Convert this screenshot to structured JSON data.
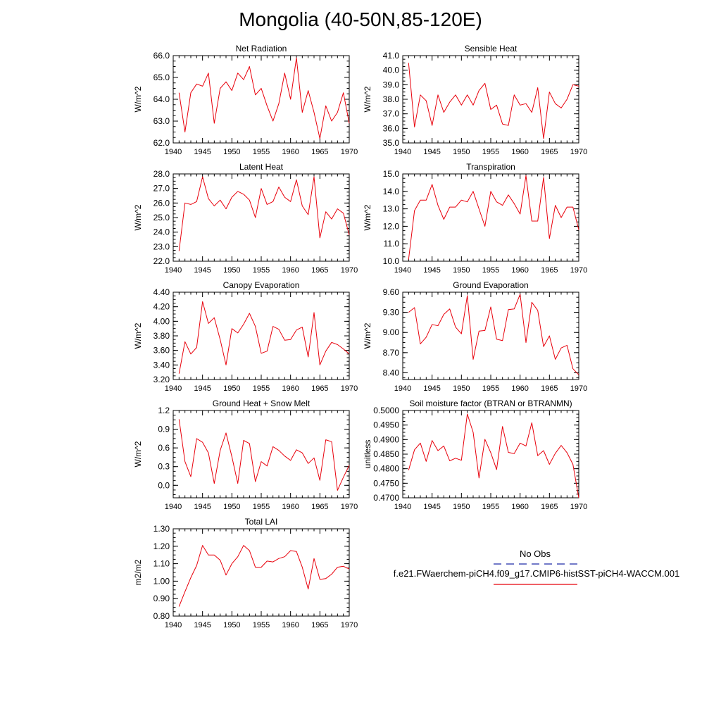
{
  "page_title": "Mongolia (40-50N,85-120E)",
  "colors": {
    "model_line": "#e8000b",
    "obs_line": "#1f2aa6",
    "axis": "#000000"
  },
  "legend": {
    "obs_label": "No Obs",
    "model_label": "f.e21.FWaerchem-piCH4.f09_g17.CMIP6-histSST-piCH4-WACCM.001"
  },
  "chart_data": [
    {
      "type": "line",
      "title": "Net Radiation",
      "ylabel": "W/m^2",
      "xlim": [
        1940,
        1970
      ],
      "ylim": [
        62.0,
        66.0
      ],
      "xticks": [
        "1940",
        "1945",
        "1950",
        "1955",
        "1960",
        "1965",
        "1970"
      ],
      "yticks": [
        "62.0",
        "63.0",
        "64.0",
        "65.0",
        "66.0"
      ],
      "x": [
        1941,
        1942,
        1943,
        1944,
        1945,
        1946,
        1947,
        1948,
        1949,
        1950,
        1951,
        1952,
        1953,
        1954,
        1955,
        1956,
        1957,
        1958,
        1959,
        1960,
        1961,
        1962,
        1963,
        1964,
        1965,
        1966,
        1967,
        1968,
        1969,
        1970
      ],
      "series": [
        {
          "values": [
            64.3,
            62.5,
            64.3,
            64.7,
            64.6,
            65.2,
            62.9,
            64.5,
            64.8,
            64.4,
            65.2,
            64.9,
            65.5,
            64.2,
            64.5,
            63.7,
            63.0,
            63.8,
            65.2,
            64.0,
            65.9,
            63.4,
            64.4,
            63.4,
            62.2,
            63.7,
            63.0,
            63.4,
            64.3,
            62.9
          ]
        }
      ]
    },
    {
      "type": "line",
      "title": "Sensible Heat",
      "ylabel": "W/m^2",
      "xlim": [
        1940,
        1970
      ],
      "ylim": [
        35.0,
        41.0
      ],
      "xticks": [
        "1940",
        "1945",
        "1950",
        "1955",
        "1960",
        "1965",
        "1970"
      ],
      "yticks": [
        "35.0",
        "36.0",
        "37.0",
        "38.0",
        "39.0",
        "40.0",
        "41.0"
      ],
      "x": [
        1941,
        1942,
        1943,
        1944,
        1945,
        1946,
        1947,
        1948,
        1949,
        1950,
        1951,
        1952,
        1953,
        1954,
        1955,
        1956,
        1957,
        1958,
        1959,
        1960,
        1961,
        1962,
        1963,
        1964,
        1965,
        1966,
        1967,
        1968,
        1969,
        1970
      ],
      "series": [
        {
          "values": [
            40.5,
            36.1,
            38.3,
            37.9,
            36.2,
            38.3,
            37.1,
            37.8,
            38.3,
            37.6,
            38.3,
            37.6,
            38.6,
            39.1,
            37.3,
            37.6,
            36.3,
            36.2,
            38.3,
            37.6,
            37.7,
            37.1,
            38.8,
            35.3,
            38.5,
            37.7,
            37.4,
            38.0,
            39.0,
            38.9
          ]
        }
      ]
    },
    {
      "type": "line",
      "title": "Latent Heat",
      "ylabel": "W/m^2",
      "xlim": [
        1940,
        1970
      ],
      "ylim": [
        22.0,
        28.0
      ],
      "xticks": [
        "1940",
        "1945",
        "1950",
        "1955",
        "1960",
        "1965",
        "1970"
      ],
      "yticks": [
        "22.0",
        "23.0",
        "24.0",
        "25.0",
        "26.0",
        "27.0",
        "28.0"
      ],
      "x": [
        1941,
        1942,
        1943,
        1944,
        1945,
        1946,
        1947,
        1948,
        1949,
        1950,
        1951,
        1952,
        1953,
        1954,
        1955,
        1956,
        1957,
        1958,
        1959,
        1960,
        1961,
        1962,
        1963,
        1964,
        1965,
        1966,
        1967,
        1968,
        1969,
        1970
      ],
      "series": [
        {
          "values": [
            22.7,
            26.0,
            25.9,
            26.1,
            27.8,
            26.3,
            25.8,
            26.2,
            25.6,
            26.4,
            26.8,
            26.6,
            26.2,
            25.0,
            27.0,
            25.9,
            26.1,
            27.1,
            26.4,
            26.1,
            27.6,
            25.8,
            25.2,
            27.8,
            23.6,
            25.4,
            24.9,
            25.6,
            25.3,
            23.8
          ]
        }
      ]
    },
    {
      "type": "line",
      "title": "Transpiration",
      "ylabel": "W/m^2",
      "xlim": [
        1940,
        1970
      ],
      "ylim": [
        10.0,
        15.0
      ],
      "xticks": [
        "1940",
        "1945",
        "1950",
        "1955",
        "1960",
        "1965",
        "1970"
      ],
      "yticks": [
        "10.0",
        "11.0",
        "12.0",
        "13.0",
        "14.0",
        "15.0"
      ],
      "x": [
        1941,
        1942,
        1943,
        1944,
        1945,
        1946,
        1947,
        1948,
        1949,
        1950,
        1951,
        1952,
        1953,
        1954,
        1955,
        1956,
        1957,
        1958,
        1959,
        1960,
        1961,
        1962,
        1963,
        1964,
        1965,
        1966,
        1967,
        1968,
        1969,
        1970
      ],
      "series": [
        {
          "values": [
            10.1,
            12.9,
            13.5,
            13.5,
            14.4,
            13.2,
            12.4,
            13.1,
            13.1,
            13.5,
            13.4,
            14.0,
            13.0,
            12.0,
            14.0,
            13.4,
            13.2,
            13.8,
            13.3,
            12.7,
            14.9,
            12.3,
            12.3,
            14.8,
            11.3,
            13.2,
            12.5,
            13.1,
            13.1,
            11.8
          ]
        }
      ]
    },
    {
      "type": "line",
      "title": "Canopy Evaporation",
      "ylabel": "W/m^2",
      "xlim": [
        1940,
        1970
      ],
      "ylim": [
        3.2,
        4.4
      ],
      "xticks": [
        "1940",
        "1945",
        "1950",
        "1955",
        "1960",
        "1965",
        "1970"
      ],
      "yticks": [
        "3.20",
        "3.40",
        "3.60",
        "3.80",
        "4.00",
        "4.20",
        "4.40"
      ],
      "x": [
        1941,
        1942,
        1943,
        1944,
        1945,
        1946,
        1947,
        1948,
        1949,
        1950,
        1951,
        1952,
        1953,
        1954,
        1955,
        1956,
        1957,
        1958,
        1959,
        1960,
        1961,
        1962,
        1963,
        1964,
        1965,
        1966,
        1967,
        1968,
        1969,
        1970
      ],
      "series": [
        {
          "values": [
            3.28,
            3.72,
            3.55,
            3.64,
            4.27,
            3.97,
            4.05,
            3.75,
            3.4,
            3.9,
            3.84,
            3.96,
            4.11,
            3.93,
            3.56,
            3.59,
            3.93,
            3.89,
            3.74,
            3.75,
            3.88,
            3.92,
            3.51,
            4.12,
            3.4,
            3.59,
            3.71,
            3.68,
            3.62,
            3.55
          ]
        }
      ]
    },
    {
      "type": "line",
      "title": "Ground Evaporation",
      "ylabel": "W/m^2",
      "xlim": [
        1940,
        1970
      ],
      "ylim": [
        8.3,
        9.6
      ],
      "xticks": [
        "1940",
        "1945",
        "1950",
        "1955",
        "1960",
        "1965",
        "1970"
      ],
      "yticks": [
        "8.40",
        "8.70",
        "9.00",
        "9.30",
        "9.60"
      ],
      "x": [
        1941,
        1942,
        1943,
        1944,
        1945,
        1946,
        1947,
        1948,
        1949,
        1950,
        1951,
        1952,
        1953,
        1954,
        1955,
        1956,
        1957,
        1958,
        1959,
        1960,
        1961,
        1962,
        1963,
        1964,
        1965,
        1966,
        1967,
        1968,
        1969,
        1970
      ],
      "series": [
        {
          "values": [
            9.3,
            9.37,
            8.83,
            8.93,
            9.12,
            9.1,
            9.27,
            9.35,
            9.08,
            8.98,
            9.55,
            8.6,
            9.02,
            9.03,
            9.38,
            8.9,
            8.88,
            9.34,
            9.35,
            9.57,
            8.85,
            9.45,
            9.33,
            8.79,
            8.95,
            8.6,
            8.77,
            8.81,
            8.46,
            8.37
          ]
        }
      ]
    },
    {
      "type": "line",
      "title": "Ground Heat + Snow Melt",
      "ylabel": "W/m^2",
      "xlim": [
        1940,
        1970
      ],
      "ylim": [
        -0.2,
        1.2
      ],
      "xticks": [
        "1940",
        "1945",
        "1950",
        "1955",
        "1960",
        "1965",
        "1970"
      ],
      "yticks": [
        "0.0",
        "0.3",
        "0.6",
        "0.9",
        "1.2"
      ],
      "x": [
        1941,
        1942,
        1943,
        1944,
        1945,
        1946,
        1947,
        1948,
        1949,
        1950,
        1951,
        1952,
        1953,
        1954,
        1955,
        1956,
        1957,
        1958,
        1959,
        1960,
        1961,
        1962,
        1963,
        1964,
        1965,
        1966,
        1967,
        1968,
        1969,
        1970
      ],
      "series": [
        {
          "values": [
            1.06,
            0.38,
            0.14,
            0.75,
            0.69,
            0.52,
            0.03,
            0.56,
            0.84,
            0.46,
            0.03,
            0.72,
            0.67,
            0.06,
            0.38,
            0.31,
            0.62,
            0.56,
            0.47,
            0.4,
            0.57,
            0.52,
            0.35,
            0.44,
            0.08,
            0.73,
            0.7,
            -0.08,
            0.13,
            0.32
          ]
        }
      ]
    },
    {
      "type": "line",
      "title": "Soil moisture factor (BTRAN or BTRANMN)",
      "ylabel": "unitless",
      "xlim": [
        1940,
        1970
      ],
      "ylim": [
        0.47,
        0.5
      ],
      "xticks": [
        "1940",
        "1945",
        "1950",
        "1955",
        "1960",
        "1965",
        "1970"
      ],
      "yticks": [
        "0.4700",
        "0.4750",
        "0.4800",
        "0.4850",
        "0.4900",
        "0.4950",
        "0.5000"
      ],
      "x": [
        1941,
        1942,
        1943,
        1944,
        1945,
        1946,
        1947,
        1948,
        1949,
        1950,
        1951,
        1952,
        1953,
        1954,
        1955,
        1956,
        1957,
        1958,
        1959,
        1960,
        1961,
        1962,
        1963,
        1964,
        1965,
        1966,
        1967,
        1968,
        1969,
        1970
      ],
      "series": [
        {
          "values": [
            0.4795,
            0.4865,
            0.4888,
            0.4825,
            0.4897,
            0.4862,
            0.4878,
            0.4827,
            0.4836,
            0.4829,
            0.4988,
            0.4925,
            0.4768,
            0.4901,
            0.4855,
            0.4797,
            0.4945,
            0.4856,
            0.4852,
            0.4888,
            0.4878,
            0.4958,
            0.4845,
            0.4862,
            0.4815,
            0.4853,
            0.488,
            0.4855,
            0.4815,
            0.47
          ]
        }
      ]
    },
    {
      "type": "line",
      "title": "Total LAI",
      "ylabel": "m2/m2",
      "xlim": [
        1940,
        1970
      ],
      "ylim": [
        0.8,
        1.3
      ],
      "xticks": [
        "1940",
        "1945",
        "1950",
        "1955",
        "1960",
        "1965",
        "1970"
      ],
      "yticks": [
        "0.80",
        "0.90",
        "1.00",
        "1.10",
        "1.20",
        "1.30"
      ],
      "x": [
        1941,
        1942,
        1943,
        1944,
        1945,
        1946,
        1947,
        1948,
        1949,
        1950,
        1951,
        1952,
        1953,
        1954,
        1955,
        1956,
        1957,
        1958,
        1959,
        1960,
        1961,
        1962,
        1963,
        1964,
        1965,
        1966,
        1967,
        1968,
        1969,
        1970
      ],
      "series": [
        {
          "values": [
            0.855,
            0.94,
            1.02,
            1.09,
            1.205,
            1.15,
            1.15,
            1.12,
            1.035,
            1.1,
            1.14,
            1.205,
            1.175,
            1.08,
            1.08,
            1.115,
            1.11,
            1.13,
            1.14,
            1.175,
            1.17,
            1.08,
            0.955,
            1.13,
            1.01,
            1.015,
            1.04,
            1.08,
            1.085,
            1.07
          ]
        }
      ]
    }
  ]
}
